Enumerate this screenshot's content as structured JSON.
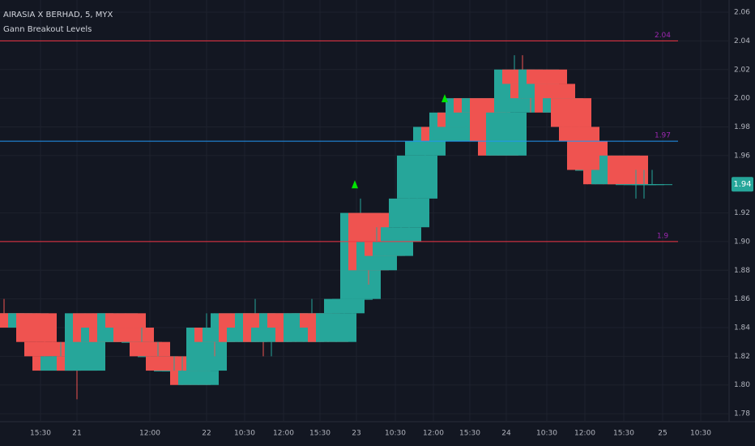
{
  "chart_data": {
    "type": "candlestick",
    "title": "AIRASIA X BERHAD, 5, MYX",
    "subtitle": "Gann Breakout Levels",
    "up_color": "#26a69a",
    "down_color": "#ef5350",
    "candles": [
      [
        1.85,
        1.86,
        1.84,
        1.84
      ],
      [
        1.84,
        1.85,
        1.84,
        1.85
      ],
      [
        1.85,
        1.85,
        1.84,
        1.84
      ],
      [
        1.84,
        1.85,
        1.83,
        1.85
      ],
      [
        1.85,
        1.85,
        1.83,
        1.83
      ],
      [
        1.83,
        1.84,
        1.82,
        1.82
      ],
      [
        1.82,
        1.83,
        1.81,
        1.81
      ],
      [
        1.81,
        1.83,
        1.81,
        1.82
      ],
      [
        1.82,
        1.82,
        1.81,
        1.82
      ],
      [
        1.82,
        1.82,
        1.79,
        1.81
      ],
      [
        1.81,
        1.85,
        1.81,
        1.85
      ],
      [
        1.85,
        1.85,
        1.83,
        1.83
      ],
      [
        1.83,
        1.84,
        1.83,
        1.84
      ],
      [
        1.84,
        1.85,
        1.83,
        1.83
      ],
      [
        1.83,
        1.85,
        1.83,
        1.85
      ],
      [
        1.85,
        1.85,
        1.83,
        1.84
      ],
      [
        1.84,
        1.84,
        1.83,
        1.83
      ],
      [
        1.83,
        1.84,
        1.83,
        1.83
      ],
      [
        1.83,
        1.83,
        1.82,
        1.82
      ],
      [
        1.82,
        1.83,
        1.82,
        1.82
      ],
      [
        1.82,
        1.82,
        1.81,
        1.81
      ],
      [
        1.81,
        1.82,
        1.81,
        1.81
      ],
      [
        1.81,
        1.82,
        1.8,
        1.81
      ],
      [
        1.81,
        1.81,
        1.8,
        1.8
      ],
      [
        1.8,
        1.81,
        1.8,
        1.81
      ],
      [
        1.81,
        1.85,
        1.8,
        1.84
      ],
      [
        1.84,
        1.85,
        1.82,
        1.83
      ],
      [
        1.83,
        1.84,
        1.82,
        1.84
      ],
      [
        1.84,
        1.85,
        1.83,
        1.85
      ],
      [
        1.85,
        1.85,
        1.83,
        1.83
      ],
      [
        1.83,
        1.85,
        1.83,
        1.84
      ],
      [
        1.84,
        1.86,
        1.83,
        1.85
      ],
      [
        1.85,
        1.85,
        1.82,
        1.83
      ],
      [
        1.83,
        1.84,
        1.82,
        1.84
      ],
      [
        1.84,
        1.85,
        1.83,
        1.85
      ],
      [
        1.85,
        1.85,
        1.83,
        1.84
      ],
      [
        1.84,
        1.85,
        1.83,
        1.83
      ],
      [
        1.83,
        1.85,
        1.83,
        1.85
      ],
      [
        1.85,
        1.86,
        1.84,
        1.85
      ],
      [
        1.85,
        1.85,
        1.83,
        1.84
      ],
      [
        1.84,
        1.84,
        1.83,
        1.83
      ],
      [
        1.83,
        1.85,
        1.83,
        1.85
      ],
      [
        1.85,
        1.86,
        1.85,
        1.86
      ],
      [
        1.86,
        1.86,
        1.85,
        1.86
      ],
      [
        1.86,
        1.93,
        1.86,
        1.92
      ],
      [
        1.92,
        1.92,
        1.87,
        1.88
      ],
      [
        1.88,
        1.91,
        1.88,
        1.9
      ],
      [
        1.9,
        1.91,
        1.89,
        1.89
      ],
      [
        1.89,
        1.91,
        1.89,
        1.9
      ],
      [
        1.9,
        1.92,
        1.89,
        1.91
      ],
      [
        1.91,
        1.94,
        1.9,
        1.93
      ],
      [
        1.93,
        1.96,
        1.93,
        1.96
      ],
      [
        1.96,
        1.98,
        1.95,
        1.97
      ],
      [
        1.97,
        1.98,
        1.96,
        1.98
      ],
      [
        1.98,
        1.98,
        1.97,
        1.97
      ],
      [
        1.97,
        1.99,
        1.97,
        1.99
      ],
      [
        1.99,
        2.0,
        1.98,
        1.98
      ],
      [
        1.98,
        2.0,
        1.98,
        2.0
      ],
      [
        2.0,
        2.0,
        1.98,
        1.99
      ],
      [
        1.99,
        2.0,
        1.98,
        2.0
      ],
      [
        2.0,
        2.0,
        1.96,
        1.97
      ],
      [
        1.97,
        1.98,
        1.96,
        1.96
      ],
      [
        1.96,
        2.0,
        1.96,
        1.99
      ],
      [
        1.99,
        2.03,
        1.99,
        2.02
      ],
      [
        2.02,
        2.03,
        2.0,
        2.01
      ],
      [
        2.01,
        2.02,
        1.99,
        2.0
      ],
      [
        2.0,
        2.02,
        2.0,
        2.02
      ],
      [
        2.02,
        2.02,
        2.0,
        2.01
      ],
      [
        2.01,
        2.01,
        1.98,
        1.99
      ],
      [
        1.99,
        2.0,
        1.98,
        2.0
      ],
      [
        2.0,
        2.0,
        1.98,
        1.98
      ],
      [
        1.98,
        1.99,
        1.97,
        1.97
      ],
      [
        1.97,
        1.97,
        1.94,
        1.95
      ],
      [
        1.95,
        1.95,
        1.94,
        1.95
      ],
      [
        1.95,
        1.96,
        1.94,
        1.94
      ],
      [
        1.94,
        1.96,
        1.94,
        1.95
      ],
      [
        1.95,
        1.96,
        1.94,
        1.96
      ],
      [
        1.96,
        1.96,
        1.94,
        1.94
      ],
      [
        1.94,
        1.95,
        1.93,
        1.94
      ],
      [
        1.94,
        1.95,
        1.93,
        1.94
      ],
      [
        1.94,
        1.95,
        1.94,
        1.94
      ]
    ],
    "levels": [
      {
        "value": 2.04,
        "color": "#f23645"
      },
      {
        "value": 1.97,
        "color": "#2196f3"
      },
      {
        "value": 1.9,
        "color": "#f23645"
      }
    ],
    "level_label_color": "#9c27b0",
    "signals": [
      {
        "x": 43.3,
        "y": 1.94
      },
      {
        "x": 54.4,
        "y": 2.0
      }
    ],
    "signal_color": "#00e600",
    "last_price": 1.94,
    "xlim": [
      -0.5,
      89.5
    ],
    "ylim": [
      1.7744,
      2.0685
    ],
    "xticks": [
      {
        "value": 4.5,
        "label": "15:30"
      },
      {
        "value": 9,
        "label": "21"
      },
      {
        "value": 18,
        "label": "12:00"
      },
      {
        "value": 25,
        "label": "22"
      },
      {
        "value": 29.7,
        "label": "10:30"
      },
      {
        "value": 34.5,
        "label": "12:00"
      },
      {
        "value": 39,
        "label": "15:30"
      },
      {
        "value": 43.5,
        "label": "23"
      },
      {
        "value": 48.3,
        "label": "10:30"
      },
      {
        "value": 53,
        "label": "12:00"
      },
      {
        "value": 57.5,
        "label": "15:30"
      },
      {
        "value": 62,
        "label": "24"
      },
      {
        "value": 67,
        "label": "10:30"
      },
      {
        "value": 71.7,
        "label": "12:00"
      },
      {
        "value": 76.5,
        "label": "15:30"
      },
      {
        "value": 81.3,
        "label": "25"
      },
      {
        "value": 86,
        "label": "10:30"
      }
    ],
    "yticks": [
      {
        "value": 1.78,
        "label": "1.78"
      },
      {
        "value": 1.8,
        "label": "1.80"
      },
      {
        "value": 1.82,
        "label": "1.82"
      },
      {
        "value": 1.84,
        "label": "1.84"
      },
      {
        "value": 1.86,
        "label": "1.86"
      },
      {
        "value": 1.88,
        "label": "1.88"
      },
      {
        "value": 1.9,
        "label": "1.90"
      },
      {
        "value": 1.92,
        "label": "1.92"
      },
      {
        "value": 1.96,
        "label": "1.96"
      },
      {
        "value": 1.98,
        "label": "1.98"
      },
      {
        "value": 2.0,
        "label": "2.00"
      },
      {
        "value": 2.02,
        "label": "2.02"
      },
      {
        "value": 2.04,
        "label": "2.04"
      },
      {
        "value": 2.06,
        "label": "2.06"
      }
    ],
    "grid": true
  }
}
